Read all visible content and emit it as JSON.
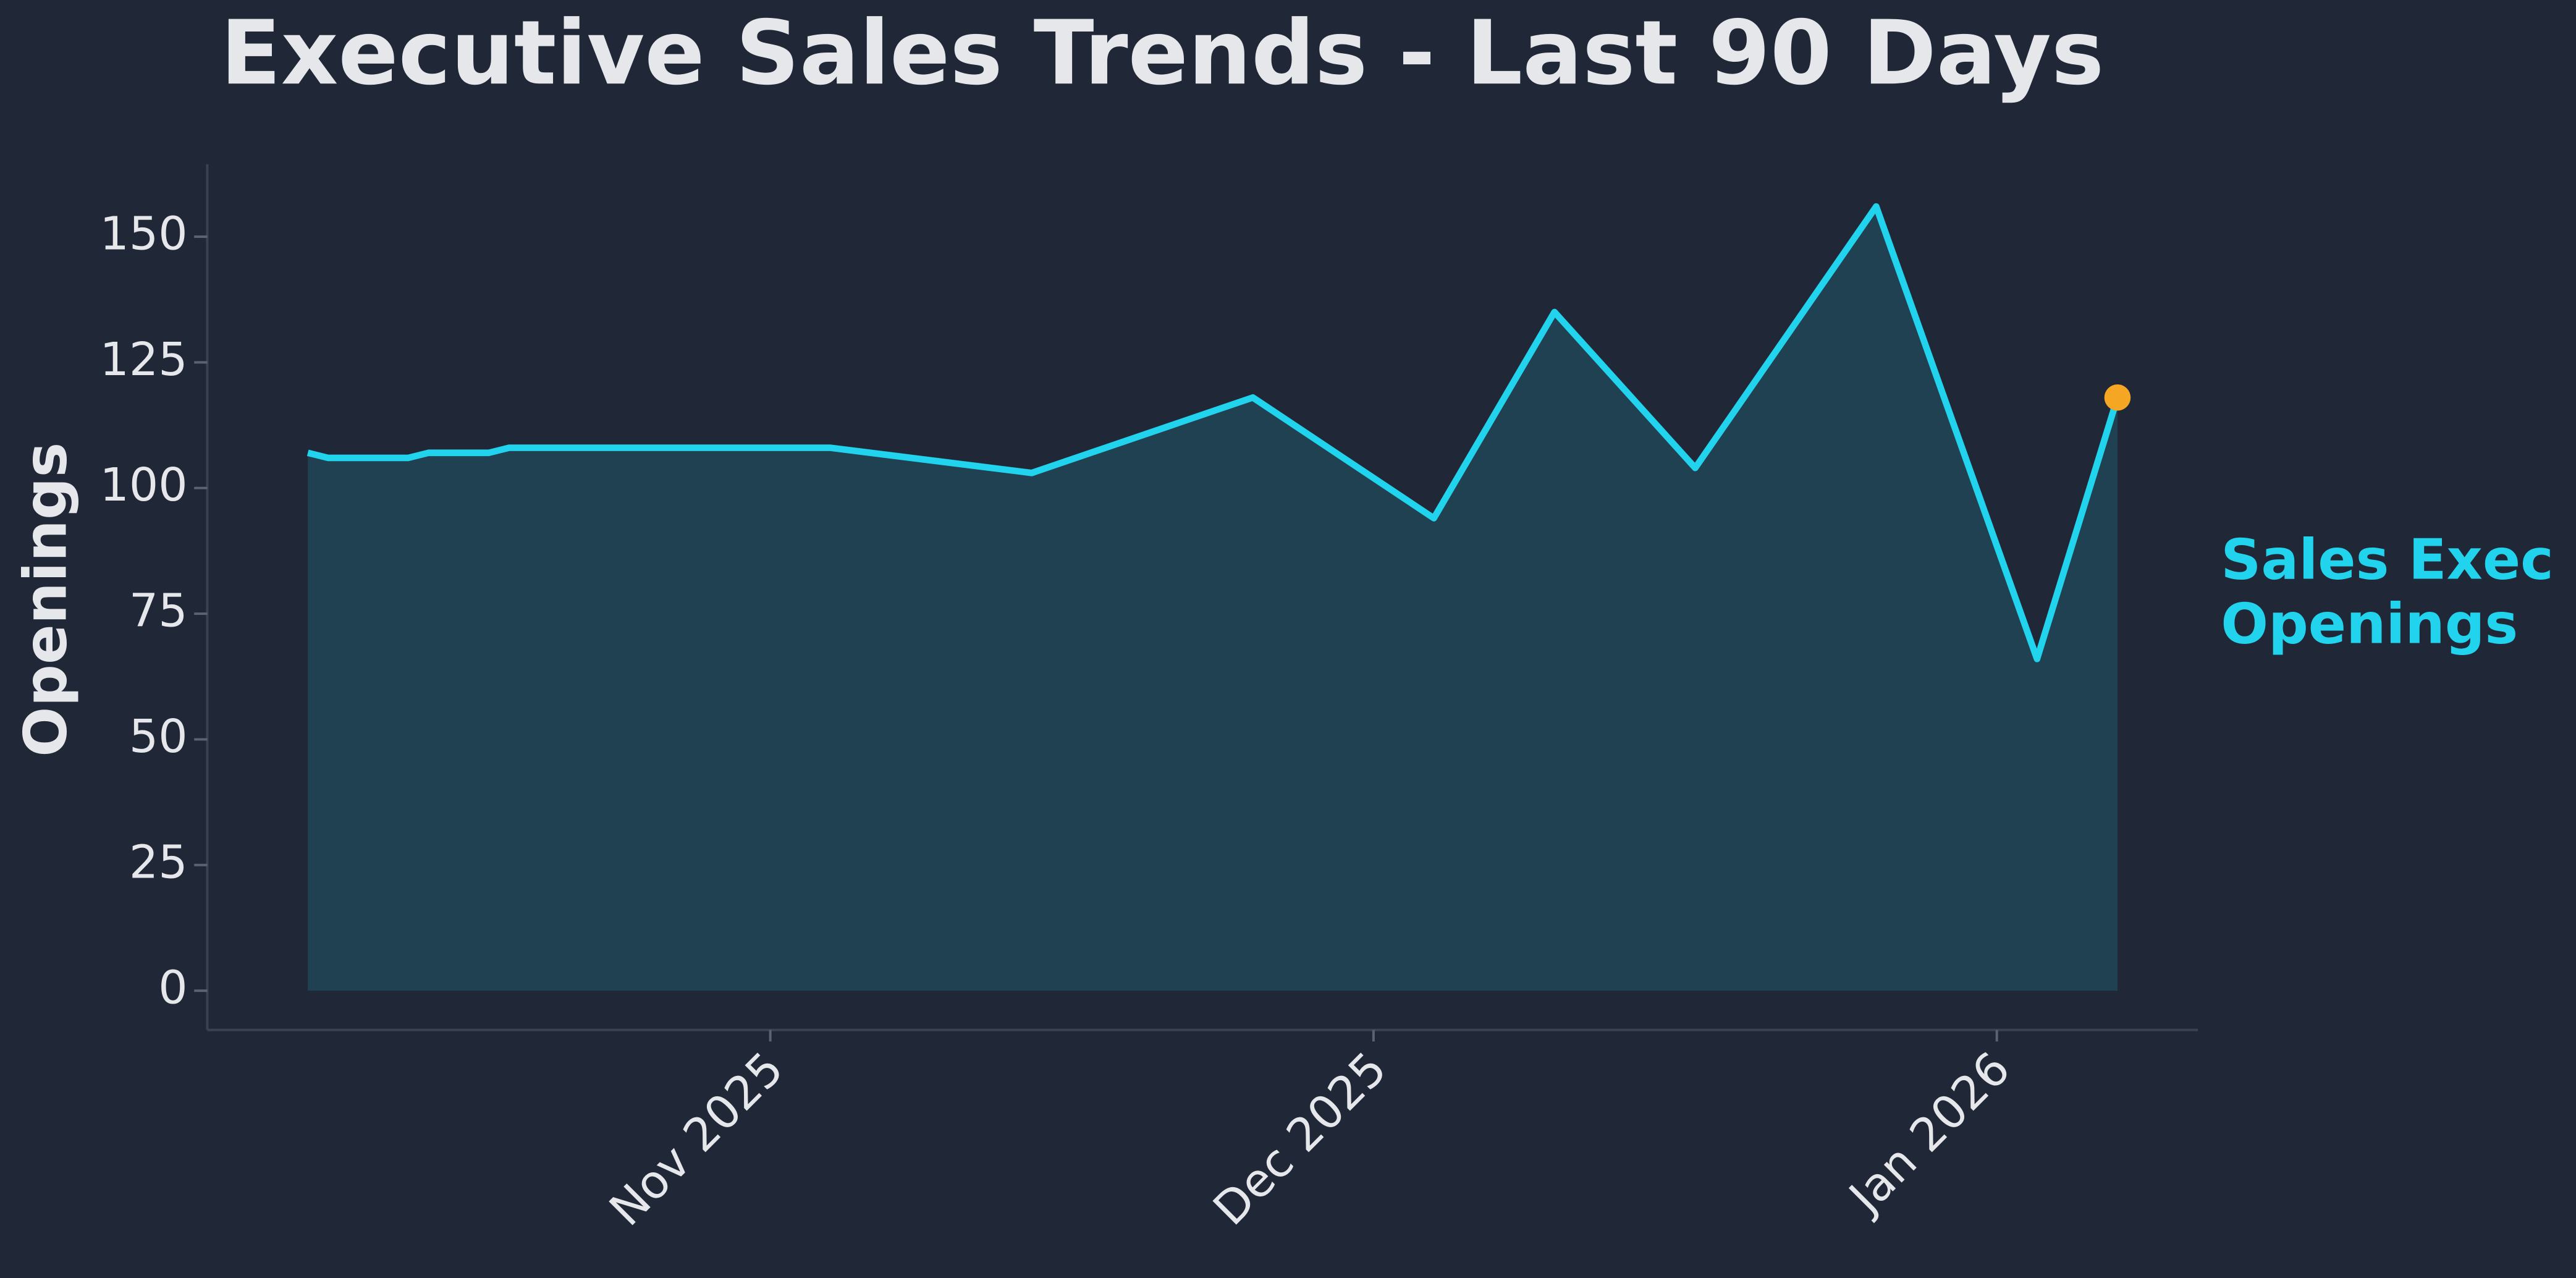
{
  "chart_data": {
    "type": "area",
    "title": "Executive Sales Trends - Last 90 Days",
    "y_label": "Openings",
    "x": [
      "2025-10-09",
      "2025-10-10",
      "2025-10-14",
      "2025-10-15",
      "2025-10-18",
      "2025-10-19",
      "2025-11-04",
      "2025-11-14",
      "2025-11-25",
      "2025-12-04",
      "2025-12-10",
      "2025-12-17",
      "2025-12-26",
      "2026-01-03",
      "2026-01-07"
    ],
    "series": [
      {
        "name": "Sales Exec Openings",
        "color": "#22d3ee",
        "values": [
          107,
          106,
          106,
          107,
          107,
          108,
          108,
          103,
          118,
          94,
          135,
          104,
          156,
          66,
          118
        ]
      }
    ],
    "highlight_color": "#f5a623",
    "xlim": [
      "2025-10-04",
      "2026-01-11"
    ],
    "xticks": [
      {
        "value": "2025-11-01",
        "label": "Nov 2025"
      },
      {
        "value": "2025-12-01",
        "label": "Dec 2025"
      },
      {
        "value": "2026-01-01",
        "label": "Jan 2026"
      }
    ],
    "ylim": [
      -7.8,
      164.4
    ],
    "yticks": [
      0,
      25,
      50,
      75,
      100,
      125,
      150
    ],
    "grid": false
  }
}
